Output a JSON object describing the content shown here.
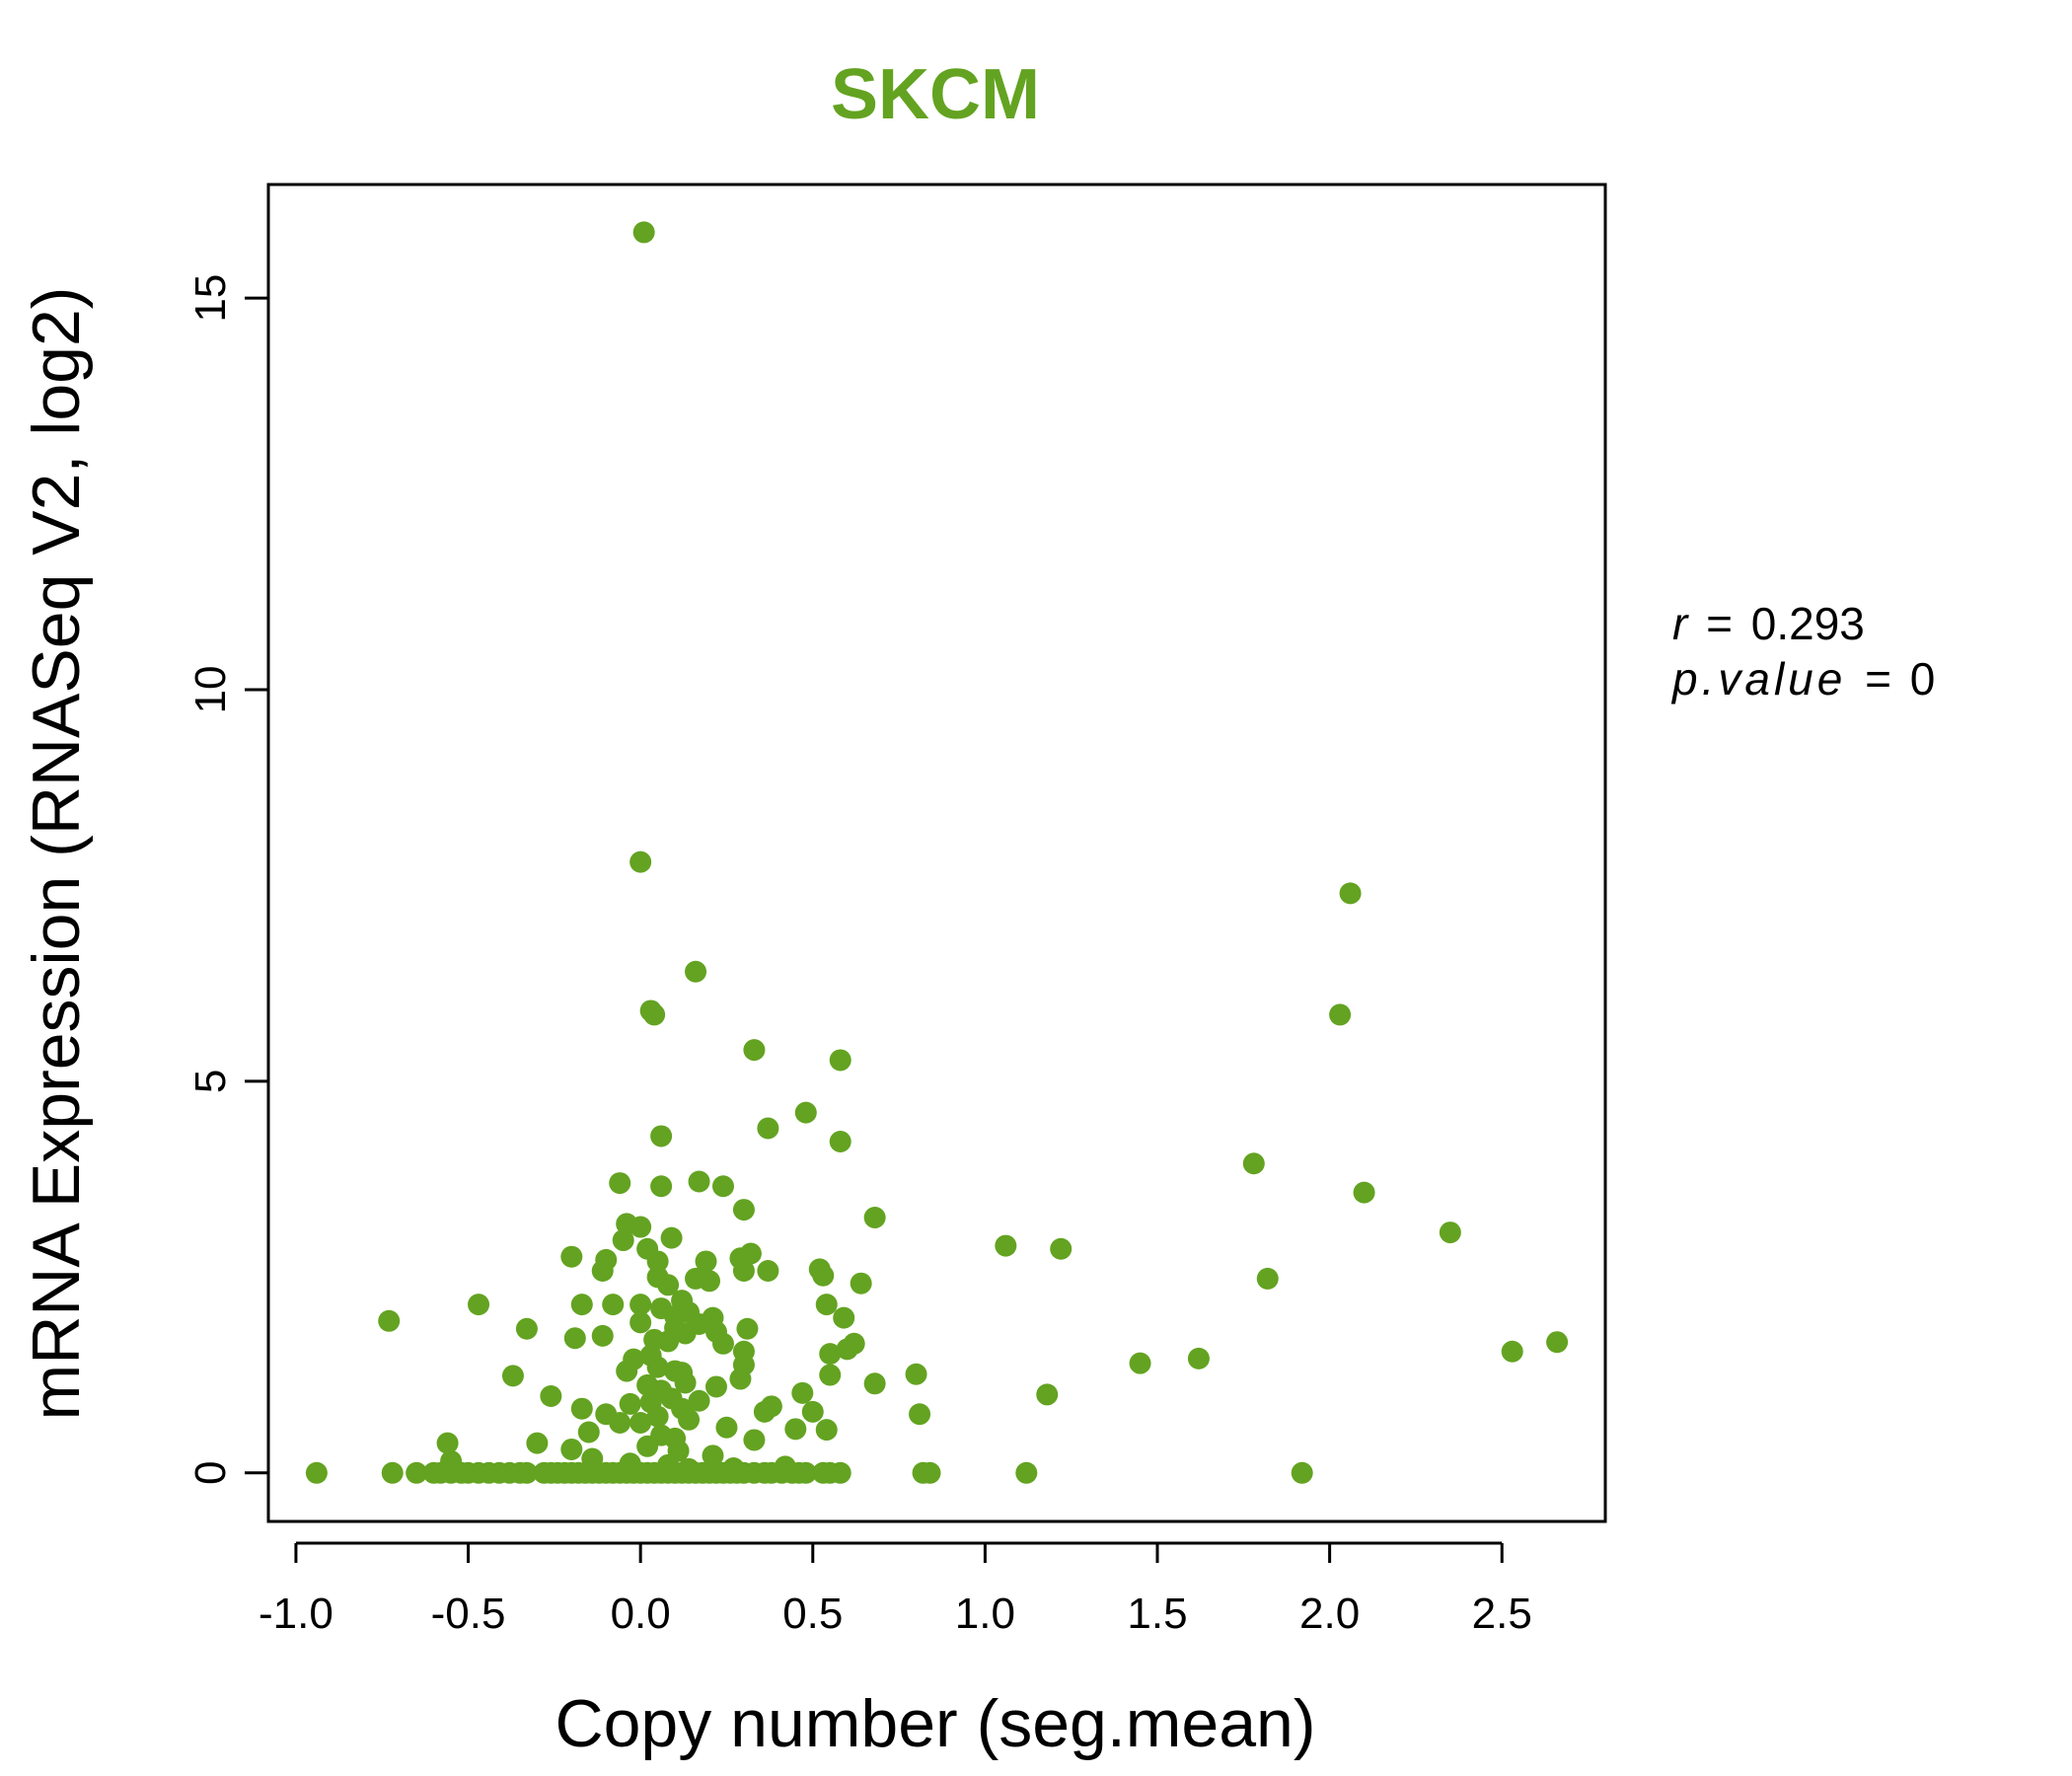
{
  "colors": {
    "accent": "#63a321",
    "axis": "#000000",
    "background": "#ffffff"
  },
  "stats": {
    "r_symbol": "r",
    "r_value": "0.293",
    "p_symbol": "p.value",
    "p_value": "0",
    "equals": "="
  },
  "chart_data": {
    "type": "scatter",
    "title": "SKCM",
    "xlabel": "Copy number (seg.mean)",
    "ylabel": "mRNA Expression (RNASeq V2, log2)",
    "xlim": [
      -1.08,
      2.8
    ],
    "ylim": [
      -0.62,
      16.45
    ],
    "x_ticks": [
      -1.0,
      -0.5,
      0.0,
      0.5,
      1.0,
      1.5,
      2.0,
      2.5
    ],
    "x_tick_labels": [
      "-1.0",
      "-0.5",
      "0.0",
      "0.5",
      "1.0",
      "1.5",
      "2.0",
      "2.5"
    ],
    "y_ticks": [
      0,
      5,
      10,
      15
    ],
    "y_tick_labels": [
      "0",
      "5",
      "10",
      "15"
    ],
    "grid": false,
    "legend": "none",
    "marker": "filled-circle",
    "series": [
      {
        "points": [
          [
            0.01,
            15.84
          ],
          [
            0.0,
            7.8
          ],
          [
            2.06,
            7.4
          ],
          [
            0.16,
            6.4
          ],
          [
            0.03,
            5.9
          ],
          [
            0.04,
            5.85
          ],
          [
            2.03,
            5.85
          ],
          [
            0.33,
            5.4
          ],
          [
            0.58,
            5.27
          ],
          [
            0.48,
            4.6
          ],
          [
            0.37,
            4.4
          ],
          [
            0.06,
            4.3
          ],
          [
            0.58,
            4.23
          ],
          [
            1.78,
            3.95
          ],
          [
            -0.06,
            3.7
          ],
          [
            0.17,
            3.72
          ],
          [
            0.06,
            3.66
          ],
          [
            0.24,
            3.66
          ],
          [
            2.1,
            3.58
          ],
          [
            0.3,
            3.36
          ],
          [
            0.68,
            3.26
          ],
          [
            -0.04,
            3.18
          ],
          [
            0.0,
            3.14
          ],
          [
            2.35,
            3.07
          ],
          [
            0.09,
            3.0
          ],
          [
            -0.05,
            2.97
          ],
          [
            1.06,
            2.9
          ],
          [
            1.22,
            2.86
          ],
          [
            0.02,
            2.86
          ],
          [
            0.32,
            2.8
          ],
          [
            -0.2,
            2.76
          ],
          [
            0.29,
            2.74
          ],
          [
            0.19,
            2.7
          ],
          [
            -0.1,
            2.72
          ],
          [
            0.05,
            2.7
          ],
          [
            -0.11,
            2.58
          ],
          [
            0.3,
            2.58
          ],
          [
            0.37,
            2.58
          ],
          [
            0.52,
            2.6
          ],
          [
            0.53,
            2.52
          ],
          [
            0.05,
            2.5
          ],
          [
            0.16,
            2.48
          ],
          [
            0.2,
            2.45
          ],
          [
            0.64,
            2.42
          ],
          [
            1.82,
            2.48
          ],
          [
            0.08,
            2.4
          ],
          [
            0.12,
            2.2
          ],
          [
            -0.17,
            2.15
          ],
          [
            -0.47,
            2.15
          ],
          [
            -0.08,
            2.15
          ],
          [
            0.54,
            2.15
          ],
          [
            0.0,
            2.15
          ],
          [
            0.06,
            2.1
          ],
          [
            0.14,
            2.05
          ],
          [
            0.1,
            2.0
          ],
          [
            0.21,
            1.98
          ],
          [
            0.0,
            1.92
          ],
          [
            -0.73,
            1.94
          ],
          [
            0.59,
            1.98
          ],
          [
            0.17,
            1.9
          ],
          [
            0.1,
            1.85
          ],
          [
            0.31,
            1.84
          ],
          [
            -0.33,
            1.84
          ],
          [
            0.22,
            1.8
          ],
          [
            0.13,
            1.78
          ],
          [
            -0.11,
            1.75
          ],
          [
            -0.19,
            1.72
          ],
          [
            0.04,
            1.7
          ],
          [
            0.08,
            1.68
          ],
          [
            0.24,
            1.65
          ],
          [
            0.62,
            1.65
          ],
          [
            2.66,
            1.67
          ],
          [
            0.6,
            1.58
          ],
          [
            2.53,
            1.55
          ],
          [
            0.3,
            1.55
          ],
          [
            0.55,
            1.52
          ],
          [
            0.03,
            1.5
          ],
          [
            -0.02,
            1.45
          ],
          [
            1.45,
            1.4
          ],
          [
            1.62,
            1.46
          ],
          [
            0.3,
            1.38
          ],
          [
            0.05,
            1.35
          ],
          [
            0.1,
            1.3
          ],
          [
            -0.04,
            1.3
          ],
          [
            0.12,
            1.28
          ],
          [
            0.55,
            1.25
          ],
          [
            -0.37,
            1.24
          ],
          [
            0.8,
            1.26
          ],
          [
            0.29,
            1.2
          ],
          [
            0.13,
            1.15
          ],
          [
            0.02,
            1.12
          ],
          [
            0.68,
            1.14
          ],
          [
            0.22,
            1.1
          ],
          [
            0.06,
            1.05
          ],
          [
            0.47,
            1.02
          ],
          [
            -0.26,
            0.98
          ],
          [
            1.18,
            1.0
          ],
          [
            0.09,
            0.95
          ],
          [
            0.17,
            0.92
          ],
          [
            0.03,
            0.9
          ],
          [
            -0.03,
            0.88
          ],
          [
            0.38,
            0.85
          ],
          [
            0.12,
            0.82
          ],
          [
            -0.17,
            0.82
          ],
          [
            0.36,
            0.78
          ],
          [
            0.5,
            0.78
          ],
          [
            0.81,
            0.75
          ],
          [
            -0.1,
            0.75
          ],
          [
            0.05,
            0.72
          ],
          [
            0.14,
            0.68
          ],
          [
            0.0,
            0.64
          ],
          [
            -0.06,
            0.64
          ],
          [
            0.25,
            0.58
          ],
          [
            0.45,
            0.56
          ],
          [
            0.54,
            0.55
          ],
          [
            -0.15,
            0.52
          ],
          [
            0.06,
            0.48
          ],
          [
            0.1,
            0.44
          ],
          [
            0.33,
            0.42
          ],
          [
            -0.3,
            0.38
          ],
          [
            -0.56,
            0.38
          ],
          [
            0.02,
            0.34
          ],
          [
            -0.2,
            0.3
          ],
          [
            0.11,
            0.28
          ],
          [
            0.21,
            0.22
          ],
          [
            -0.14,
            0.18
          ],
          [
            -0.55,
            0.15
          ],
          [
            -0.03,
            0.12
          ],
          [
            0.08,
            0.1
          ],
          [
            0.42,
            0.08
          ],
          [
            0.27,
            0.06
          ],
          [
            0.14,
            0.05
          ],
          [
            -0.94,
            0.0
          ],
          [
            -0.72,
            0.0
          ],
          [
            -0.65,
            0.0
          ],
          [
            -0.6,
            0.0
          ],
          [
            -0.58,
            0.0
          ],
          [
            -0.55,
            0.0
          ],
          [
            -0.52,
            0.0
          ],
          [
            -0.5,
            0.0
          ],
          [
            -0.47,
            0.0
          ],
          [
            -0.44,
            0.0
          ],
          [
            -0.41,
            0.0
          ],
          [
            -0.38,
            0.0
          ],
          [
            -0.35,
            0.0
          ],
          [
            -0.33,
            0.0
          ],
          [
            -0.28,
            0.0
          ],
          [
            -0.26,
            0.0
          ],
          [
            -0.24,
            0.0
          ],
          [
            -0.22,
            0.0
          ],
          [
            -0.2,
            0.0
          ],
          [
            -0.18,
            0.0
          ],
          [
            -0.16,
            0.0
          ],
          [
            -0.14,
            0.0
          ],
          [
            -0.12,
            0.0
          ],
          [
            -0.1,
            0.0
          ],
          [
            -0.08,
            0.0
          ],
          [
            -0.06,
            0.0
          ],
          [
            -0.04,
            0.0
          ],
          [
            -0.02,
            0.0
          ],
          [
            0.0,
            0.0
          ],
          [
            0.02,
            0.0
          ],
          [
            0.04,
            0.0
          ],
          [
            0.06,
            0.0
          ],
          [
            0.08,
            0.0
          ],
          [
            0.1,
            0.0
          ],
          [
            0.12,
            0.0
          ],
          [
            0.14,
            0.0
          ],
          [
            0.16,
            0.0
          ],
          [
            0.18,
            0.0
          ],
          [
            0.2,
            0.0
          ],
          [
            0.22,
            0.0
          ],
          [
            0.24,
            0.0
          ],
          [
            0.26,
            0.0
          ],
          [
            0.28,
            0.0
          ],
          [
            0.3,
            0.0
          ],
          [
            0.33,
            0.0
          ],
          [
            0.36,
            0.0
          ],
          [
            0.38,
            0.0
          ],
          [
            0.41,
            0.0
          ],
          [
            0.44,
            0.0
          ],
          [
            0.46,
            0.0
          ],
          [
            0.48,
            0.0
          ],
          [
            0.53,
            0.0
          ],
          [
            0.55,
            0.0
          ],
          [
            0.58,
            0.0
          ],
          [
            0.82,
            0.0
          ],
          [
            0.84,
            0.0
          ],
          [
            1.12,
            0.0
          ],
          [
            1.92,
            0.0
          ]
        ]
      }
    ]
  }
}
